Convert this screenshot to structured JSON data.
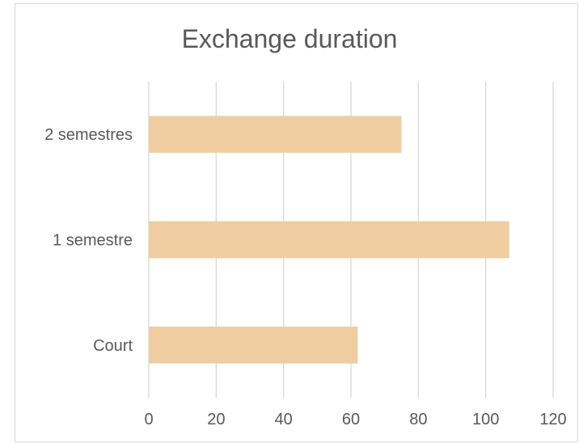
{
  "chart_data": {
    "type": "bar",
    "orientation": "horizontal",
    "title": "Exchange duration",
    "xlabel": "",
    "ylabel": "",
    "categories": [
      "2 semestres",
      "1 semestre",
      "Court"
    ],
    "values": [
      75,
      107,
      62
    ],
    "xlim": [
      0,
      120
    ],
    "xticks": [
      0,
      20,
      40,
      60,
      80,
      100,
      120
    ],
    "grid": "vertical",
    "legend": "none",
    "bar_color": "#f0cda0",
    "grid_color": "#d9d9d9",
    "text_color": "#595959"
  }
}
